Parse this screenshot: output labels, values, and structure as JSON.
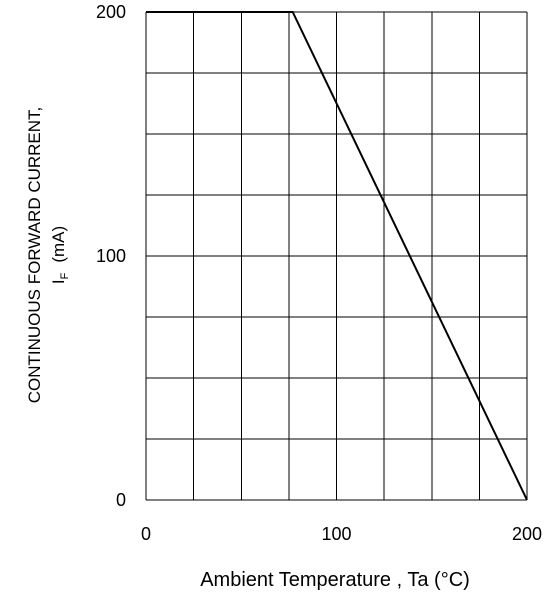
{
  "chart_data": {
    "type": "line",
    "title": "",
    "xlabel": "Ambient Temperature , Ta (°C)",
    "ylabel_line1": "CONTINUOUS FORWARD CURRENT,",
    "ylabel_line2_main": "I",
    "ylabel_line2_sub": "F",
    "ylabel_line2_unit": "(mA)",
    "xlim": [
      0,
      200
    ],
    "ylim": [
      0,
      200
    ],
    "x_tick_labels": [
      "0",
      "100",
      "200"
    ],
    "y_tick_labels": [
      "0",
      "100",
      "200"
    ],
    "x_ticks": [
      0,
      100,
      200
    ],
    "y_ticks": [
      0,
      100,
      200
    ],
    "grid": true,
    "grid_x_count": 8,
    "grid_y_count": 8,
    "series": [
      {
        "x": [
          0,
          77,
          200
        ],
        "y": [
          200,
          200,
          0
        ]
      }
    ],
    "line_color": "#000000",
    "grid_color": "#000000"
  }
}
